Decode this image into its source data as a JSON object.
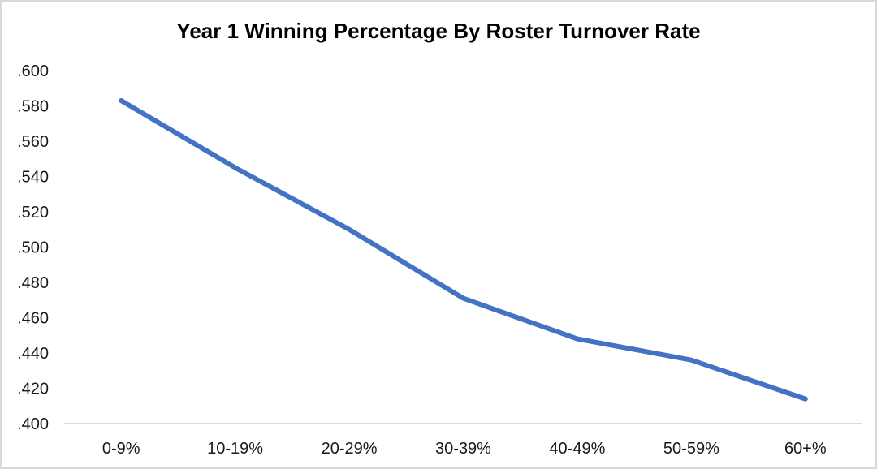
{
  "chart_data": {
    "type": "line",
    "title": "Year 1 Winning Percentage By Roster Turnover Rate",
    "categories": [
      "0-9%",
      "10-19%",
      "20-29%",
      "30-39%",
      "40-49%",
      "50-59%",
      "60+%"
    ],
    "values": [
      0.583,
      0.545,
      0.51,
      0.471,
      0.448,
      0.436,
      0.414
    ],
    "xlabel": "",
    "ylabel": "",
    "ylim": [
      0.4,
      0.6
    ],
    "ytick_step": 0.02,
    "ytick_labels": [
      ".600",
      ".580",
      ".560",
      ".540",
      ".520",
      ".500",
      ".480",
      ".460",
      ".440",
      ".420",
      ".400"
    ],
    "grid": false,
    "legend_position": "none",
    "markers": false,
    "colors": {
      "line": "#4472C4",
      "axis_line": "#D9D9D9",
      "text": "#000000",
      "background": "#FFFFFF",
      "canvas_border": "#D9D9D9"
    }
  }
}
